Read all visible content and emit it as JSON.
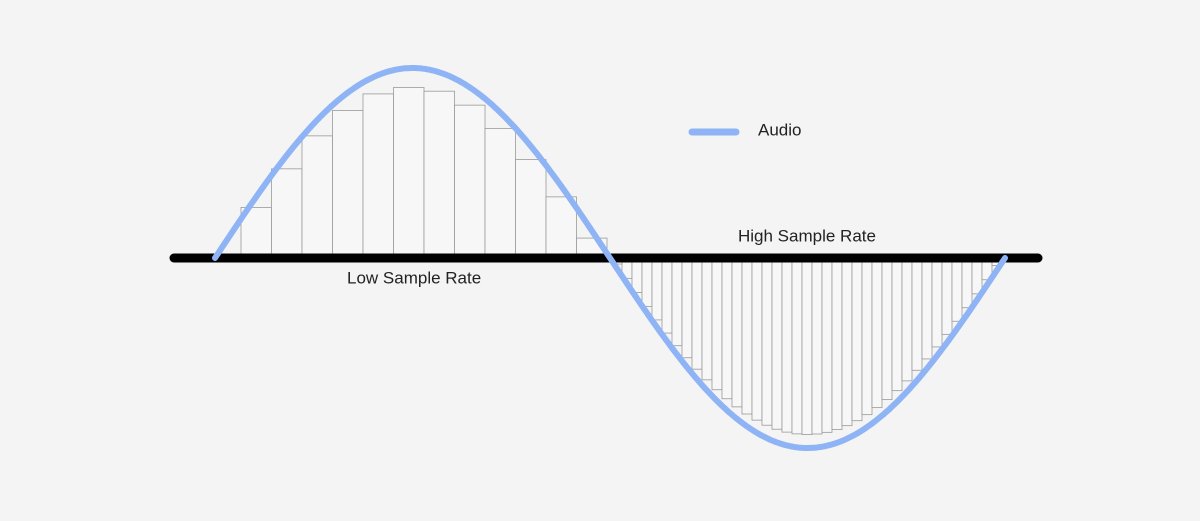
{
  "legend": {
    "label": "Audio"
  },
  "labels": {
    "low": "Low Sample Rate",
    "high": "High Sample Rate"
  }
}
